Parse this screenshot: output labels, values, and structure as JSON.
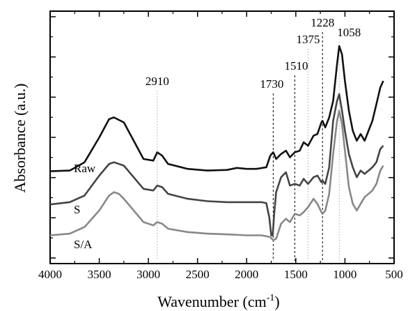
{
  "chart_data": {
    "type": "line",
    "xlabel": "Wavenumber (cm",
    "xlabel_sup": "-1",
    "xlabel_close": ")",
    "ylabel": "Absorbance (a.u.)",
    "xlim": [
      4000,
      500
    ],
    "x_reversed": true,
    "xticks": [
      4000,
      3500,
      3000,
      2500,
      2000,
      1500,
      1000,
      500
    ],
    "y_tick_labels_shown": false,
    "grid": false,
    "peak_markers": [
      {
        "x": 2910,
        "label": "2910",
        "style": "dotted",
        "color": "#aaaaaa"
      },
      {
        "x": 1730,
        "label": "1730",
        "style": "dashed",
        "color": "#000000"
      },
      {
        "x": 1510,
        "label": "1510",
        "style": "dashed",
        "color": "#000000"
      },
      {
        "x": 1375,
        "label": "1375",
        "style": "dotted",
        "color": "#aaaaaa"
      },
      {
        "x": 1228,
        "label": "1228",
        "style": "dashed",
        "color": "#000000"
      },
      {
        "x": 1058,
        "label": "1058",
        "style": "dotted",
        "color": "#aaaaaa"
      }
    ],
    "series": [
      {
        "name": "Raw",
        "color": "#111111",
        "points": [
          [
            4000,
            0.98
          ],
          [
            3800,
            1.0
          ],
          [
            3650,
            1.25
          ],
          [
            3500,
            2.0
          ],
          [
            3400,
            2.55
          ],
          [
            3350,
            2.6
          ],
          [
            3250,
            2.45
          ],
          [
            3150,
            1.9
          ],
          [
            3050,
            1.35
          ],
          [
            2950,
            1.3
          ],
          [
            2910,
            1.55
          ],
          [
            2860,
            1.45
          ],
          [
            2800,
            1.2
          ],
          [
            2600,
            1.05
          ],
          [
            2400,
            1.0
          ],
          [
            2200,
            1.02
          ],
          [
            2100,
            1.08
          ],
          [
            2000,
            1.05
          ],
          [
            1900,
            1.05
          ],
          [
            1800,
            1.1
          ],
          [
            1760,
            1.45
          ],
          [
            1730,
            1.55
          ],
          [
            1700,
            1.35
          ],
          [
            1650,
            1.5
          ],
          [
            1600,
            1.6
          ],
          [
            1560,
            1.4
          ],
          [
            1510,
            1.55
          ],
          [
            1460,
            1.6
          ],
          [
            1420,
            1.85
          ],
          [
            1375,
            1.75
          ],
          [
            1320,
            2.05
          ],
          [
            1280,
            2.1
          ],
          [
            1240,
            2.45
          ],
          [
            1228,
            2.5
          ],
          [
            1200,
            2.3
          ],
          [
            1160,
            2.6
          ],
          [
            1120,
            3.1
          ],
          [
            1080,
            4.2
          ],
          [
            1058,
            4.75
          ],
          [
            1030,
            4.5
          ],
          [
            1000,
            3.7
          ],
          [
            960,
            2.8
          ],
          [
            920,
            2.2
          ],
          [
            880,
            1.9
          ],
          [
            840,
            2.1
          ],
          [
            800,
            1.9
          ],
          [
            760,
            2.2
          ],
          [
            720,
            2.5
          ],
          [
            680,
            3.0
          ],
          [
            640,
            3.5
          ],
          [
            610,
            3.7
          ]
        ]
      },
      {
        "name": "S",
        "color": "#444444",
        "points": [
          [
            4000,
            -0.02
          ],
          [
            3800,
            0.05
          ],
          [
            3650,
            0.25
          ],
          [
            3500,
            0.85
          ],
          [
            3400,
            1.2
          ],
          [
            3350,
            1.25
          ],
          [
            3250,
            1.15
          ],
          [
            3150,
            0.8
          ],
          [
            3050,
            0.45
          ],
          [
            2950,
            0.4
          ],
          [
            2910,
            0.55
          ],
          [
            2860,
            0.5
          ],
          [
            2800,
            0.3
          ],
          [
            2600,
            0.15
          ],
          [
            2400,
            0.08
          ],
          [
            2200,
            0.05
          ],
          [
            2000,
            0.05
          ],
          [
            1850,
            0.05
          ],
          [
            1800,
            0.02
          ],
          [
            1770,
            -0.4
          ],
          [
            1750,
            -0.95
          ],
          [
            1735,
            -0.95
          ],
          [
            1720,
            -0.3
          ],
          [
            1700,
            0.35
          ],
          [
            1650,
            0.8
          ],
          [
            1600,
            0.95
          ],
          [
            1560,
            0.55
          ],
          [
            1510,
            0.6
          ],
          [
            1460,
            0.55
          ],
          [
            1420,
            0.75
          ],
          [
            1375,
            0.6
          ],
          [
            1320,
            0.8
          ],
          [
            1280,
            0.85
          ],
          [
            1240,
            0.65
          ],
          [
            1228,
            0.7
          ],
          [
            1200,
            0.6
          ],
          [
            1160,
            1.1
          ],
          [
            1120,
            2.5
          ],
          [
            1080,
            3.1
          ],
          [
            1058,
            3.3
          ],
          [
            1030,
            2.8
          ],
          [
            1000,
            2.2
          ],
          [
            960,
            1.5
          ],
          [
            920,
            1.1
          ],
          [
            880,
            0.8
          ],
          [
            840,
            1.0
          ],
          [
            800,
            0.9
          ],
          [
            760,
            1.0
          ],
          [
            720,
            1.1
          ],
          [
            680,
            1.25
          ],
          [
            640,
            1.65
          ],
          [
            610,
            1.75
          ]
        ]
      },
      {
        "name": "S/A",
        "color": "#888888",
        "points": [
          [
            4000,
            -0.95
          ],
          [
            3800,
            -0.9
          ],
          [
            3650,
            -0.7
          ],
          [
            3500,
            -0.2
          ],
          [
            3400,
            0.25
          ],
          [
            3350,
            0.35
          ],
          [
            3300,
            0.3
          ],
          [
            3250,
            0.15
          ],
          [
            3150,
            -0.2
          ],
          [
            3050,
            -0.55
          ],
          [
            2950,
            -0.65
          ],
          [
            2910,
            -0.55
          ],
          [
            2860,
            -0.6
          ],
          [
            2800,
            -0.75
          ],
          [
            2600,
            -0.85
          ],
          [
            2400,
            -0.9
          ],
          [
            2200,
            -0.92
          ],
          [
            2000,
            -0.95
          ],
          [
            1850,
            -0.95
          ],
          [
            1760,
            -1.0
          ],
          [
            1730,
            -1.1
          ],
          [
            1700,
            -1.05
          ],
          [
            1650,
            -0.6
          ],
          [
            1600,
            -0.45
          ],
          [
            1560,
            -0.55
          ],
          [
            1510,
            -0.3
          ],
          [
            1460,
            -0.35
          ],
          [
            1420,
            -0.25
          ],
          [
            1375,
            -0.1
          ],
          [
            1320,
            0.15
          ],
          [
            1280,
            0.0
          ],
          [
            1240,
            -0.25
          ],
          [
            1228,
            -0.3
          ],
          [
            1200,
            -0.2
          ],
          [
            1160,
            0.3
          ],
          [
            1120,
            1.5
          ],
          [
            1080,
            2.5
          ],
          [
            1058,
            2.8
          ],
          [
            1030,
            2.4
          ],
          [
            1000,
            1.6
          ],
          [
            960,
            0.5
          ],
          [
            920,
            0.0
          ],
          [
            880,
            -0.2
          ],
          [
            840,
            0.0
          ],
          [
            800,
            0.2
          ],
          [
            760,
            0.3
          ],
          [
            720,
            0.4
          ],
          [
            680,
            0.6
          ],
          [
            640,
            1.0
          ],
          [
            610,
            1.15
          ]
        ]
      }
    ]
  }
}
